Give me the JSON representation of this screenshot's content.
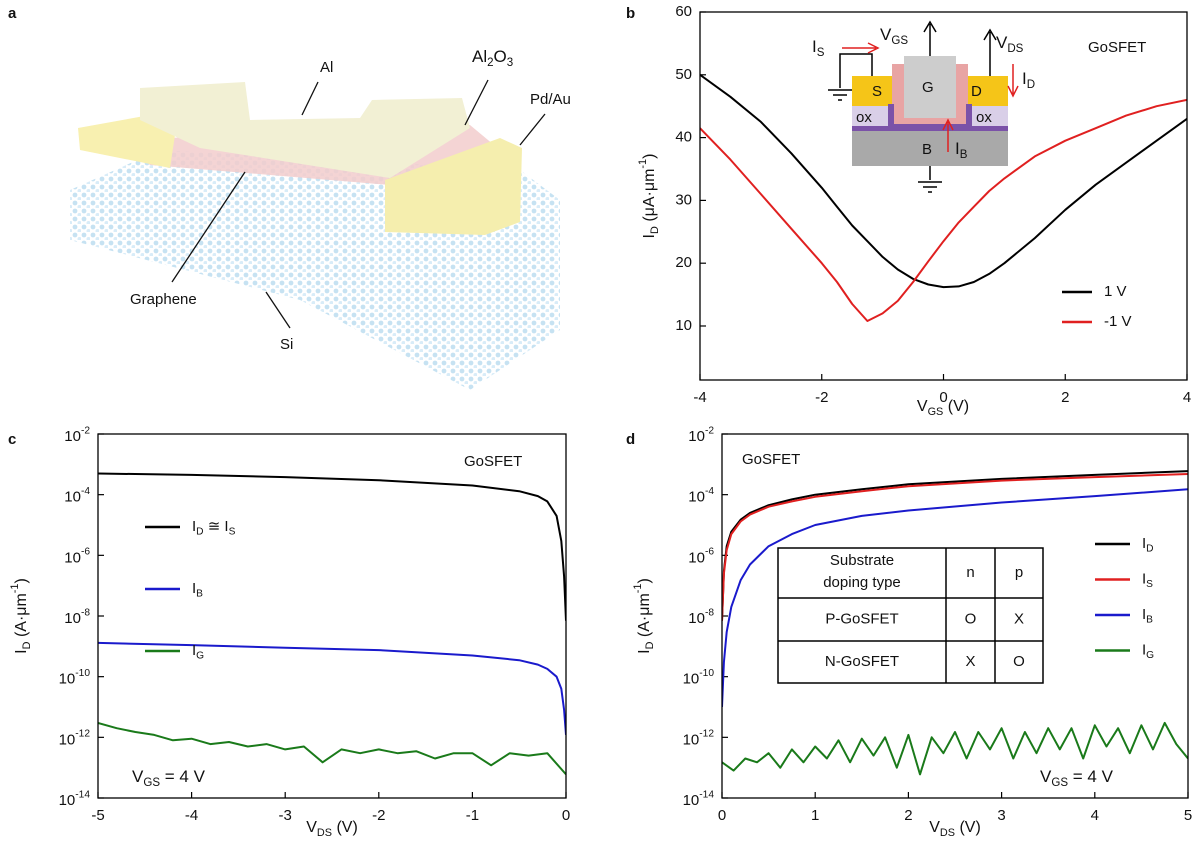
{
  "diagram": {
    "panel": "a",
    "labels": [
      "Al",
      [
        "Al",
        {
          "sub": "2"
        },
        "O",
        {
          "sub": "3"
        }
      ],
      "Pd/Au",
      "Graphene",
      "Si"
    ]
  },
  "chart_data": [
    {
      "type": "line",
      "panel": "b",
      "xlabel": [
        "V",
        {
          "sub": "GS"
        },
        " (V)"
      ],
      "ylabel": [
        "I",
        {
          "sub": "D"
        },
        " (μA·μm",
        {
          "sup": "-1"
        },
        ")"
      ],
      "xlim": [
        -4,
        4
      ],
      "ylim": [
        1.4,
        60
      ],
      "xticks": [
        -4,
        -2,
        0,
        2,
        4
      ],
      "yticks": [
        10,
        20,
        30,
        40,
        50,
        60
      ],
      "log_y": false,
      "x": [
        -4,
        -3.5,
        -3,
        -2.5,
        -2,
        -1.75,
        -1.5,
        -1.25,
        -1,
        -0.75,
        -0.5,
        -0.25,
        0,
        0.25,
        0.5,
        0.75,
        1,
        1.5,
        2,
        2.5,
        3,
        3.5,
        4
      ],
      "series": [
        {
          "name": "1 V",
          "color": "#000000",
          "values": [
            50,
            46.5,
            42.5,
            37.5,
            32,
            29,
            26,
            23.5,
            21,
            19,
            17.5,
            16.6,
            16.2,
            16.3,
            17,
            18.3,
            20,
            24,
            28.5,
            32.5,
            36,
            39.5,
            43
          ]
        },
        {
          "name": "-1 V",
          "color": "#e02020",
          "values": [
            41.5,
            36.5,
            31,
            25.5,
            20,
            17,
            13.5,
            10.8,
            12,
            14,
            17,
            20.3,
            23.5,
            26.5,
            29,
            31.5,
            33.5,
            37,
            39.5,
            41.5,
            43.5,
            45,
            46
          ]
        }
      ],
      "annotations": [
        "GoSFET"
      ],
      "inset": [
        [
          "I",
          {
            "sub": "S"
          }
        ],
        [
          "V",
          {
            "sub": "GS"
          }
        ],
        [
          "V",
          {
            "sub": "DS"
          }
        ],
        "G",
        "S",
        "D",
        [
          "I",
          {
            "sub": "D"
          }
        ],
        "ox",
        "ox",
        "B",
        [
          "I",
          {
            "sub": "B"
          }
        ]
      ]
    },
    {
      "type": "line",
      "panel": "c",
      "xlabel": [
        "V",
        {
          "sub": "DS"
        },
        " (V)"
      ],
      "ylabel": [
        "I",
        {
          "sub": "D"
        },
        " (A·μm",
        {
          "sup": "-1"
        },
        ")"
      ],
      "xlim": [
        -5,
        0
      ],
      "ylim": [
        1e-14,
        0.01
      ],
      "log_y": true,
      "xticks": [
        -5,
        -4,
        -3,
        -2,
        -1,
        0
      ],
      "yticks": [
        {
          "value": 1e-14,
          "label": [
            "10",
            {
              "sup": "-14"
            }
          ]
        },
        {
          "value": 1e-12,
          "label": [
            "10",
            {
              "sup": "-12"
            }
          ]
        },
        {
          "value": 1e-10,
          "label": [
            "10",
            {
              "sup": "-10"
            }
          ]
        },
        {
          "value": 1e-08,
          "label": [
            "10",
            {
              "sup": "-8"
            }
          ]
        },
        {
          "value": 1e-06,
          "label": [
            "10",
            {
              "sup": "-6"
            }
          ]
        },
        {
          "value": 0.0001,
          "label": [
            "10",
            {
              "sup": "-4"
            }
          ]
        },
        {
          "value": 0.01,
          "label": [
            "10",
            {
              "sup": "-2"
            }
          ]
        }
      ],
      "series": [
        {
          "name": [
            "I",
            {
              "sub": "D"
            },
            " ≅ I",
            {
              "sub": "S"
            }
          ],
          "color": "#000000",
          "x": [
            -5,
            -4,
            -3,
            -2,
            -1,
            -0.5,
            -0.3,
            -0.2,
            -0.1,
            -0.05,
            -0.02,
            0
          ],
          "values": [
            0.0005,
            0.00045,
            0.00038,
            0.0003,
            0.0002,
            0.00013,
            9e-05,
            6e-05,
            2e-05,
            3e-06,
            2e-07,
            7e-09
          ]
        },
        {
          "name": [
            "I",
            {
              "sub": "B"
            }
          ],
          "color": "#1a1acc",
          "x": [
            -5,
            -4,
            -3,
            -2,
            -1,
            -0.5,
            -0.3,
            -0.2,
            -0.1,
            -0.05,
            -0.02,
            0
          ],
          "values": [
            1.3e-09,
            1.1e-09,
            9e-10,
            7.5e-10,
            5e-10,
            3.5e-10,
            2.5e-10,
            1.8e-10,
            1e-10,
            4e-11,
            8e-12,
            1.2e-12
          ]
        },
        {
          "name": [
            "I",
            {
              "sub": "G"
            }
          ],
          "color": "#1a7a1a",
          "x": [
            -5,
            -4.8,
            -4.6,
            -4.4,
            -4.2,
            -4,
            -3.8,
            -3.6,
            -3.4,
            -3.2,
            -3,
            -2.8,
            -2.6,
            -2.4,
            -2.2,
            -2,
            -1.8,
            -1.6,
            -1.4,
            -1.2,
            -1,
            -0.8,
            -0.6,
            -0.4,
            -0.2,
            0
          ],
          "values": [
            3e-12,
            2e-12,
            1.5e-12,
            1.2e-12,
            8e-13,
            9e-13,
            6e-13,
            7e-13,
            5e-13,
            6e-13,
            4e-13,
            5e-13,
            1.5e-13,
            4e-13,
            3e-13,
            4e-13,
            3e-13,
            3.5e-13,
            2e-13,
            3e-13,
            3e-13,
            1.2e-13,
            3e-13,
            2.5e-13,
            3e-13,
            6e-14
          ]
        }
      ],
      "annotations": [
        "GoSFET",
        [
          "V",
          {
            "sub": "GS"
          },
          " = 4 V"
        ]
      ]
    },
    {
      "type": "line",
      "panel": "d",
      "xlabel": [
        "V",
        {
          "sub": "DS"
        },
        " (V)"
      ],
      "ylabel": [
        "I",
        {
          "sub": "D"
        },
        " (A·μm",
        {
          "sup": "-1"
        },
        ")"
      ],
      "xlim": [
        0,
        5
      ],
      "ylim": [
        1e-14,
        0.01
      ],
      "log_y": true,
      "xticks": [
        0,
        1,
        2,
        3,
        4,
        5
      ],
      "yticks": [
        {
          "value": 1e-14,
          "label": [
            "10",
            {
              "sup": "-14"
            }
          ]
        },
        {
          "value": 1e-12,
          "label": [
            "10",
            {
              "sup": "-12"
            }
          ]
        },
        {
          "value": 1e-10,
          "label": [
            "10",
            {
              "sup": "-10"
            }
          ]
        },
        {
          "value": 1e-08,
          "label": [
            "10",
            {
              "sup": "-8"
            }
          ]
        },
        {
          "value": 1e-06,
          "label": [
            "10",
            {
              "sup": "-6"
            }
          ]
        },
        {
          "value": 0.0001,
          "label": [
            "10",
            {
              "sup": "-4"
            }
          ]
        },
        {
          "value": 0.01,
          "label": [
            "10",
            {
              "sup": "-2"
            }
          ]
        }
      ],
      "series": [
        {
          "name": [
            "I",
            {
              "sub": "D"
            }
          ],
          "color": "#000000",
          "x": [
            0,
            0.02,
            0.05,
            0.1,
            0.2,
            0.3,
            0.5,
            0.75,
            1,
            1.5,
            2,
            3,
            4,
            5
          ],
          "values": [
            7e-09,
            3e-07,
            2e-06,
            6e-06,
            1.5e-05,
            2.5e-05,
            4.5e-05,
            7e-05,
            0.0001,
            0.00015,
            0.00022,
            0.00033,
            0.00045,
            0.0006
          ]
        },
        {
          "name": [
            "I",
            {
              "sub": "S"
            }
          ],
          "color": "#e02020",
          "x": [
            0,
            0.02,
            0.05,
            0.1,
            0.2,
            0.3,
            0.5,
            0.75,
            1,
            1.5,
            2,
            3,
            4,
            5
          ],
          "values": [
            7e-09,
            2.5e-07,
            1.5e-06,
            5e-06,
            1.3e-05,
            2.2e-05,
            4e-05,
            6e-05,
            8.5e-05,
            0.00013,
            0.00019,
            0.00029,
            0.00038,
            0.00048
          ]
        },
        {
          "name": [
            "I",
            {
              "sub": "B"
            }
          ],
          "color": "#1a1acc",
          "x": [
            0,
            0.02,
            0.05,
            0.1,
            0.2,
            0.3,
            0.5,
            0.75,
            1,
            1.5,
            2,
            3,
            4,
            5
          ],
          "values": [
            1e-11,
            3e-10,
            3e-09,
            2e-08,
            1.5e-07,
            5e-07,
            2e-06,
            5e-06,
            1e-05,
            2e-05,
            3e-05,
            5.5e-05,
            9e-05,
            0.00015
          ]
        },
        {
          "name": [
            "I",
            {
              "sub": "G"
            }
          ],
          "color": "#1a7a1a",
          "x": [
            0,
            0.125,
            0.25,
            0.375,
            0.5,
            0.625,
            0.75,
            0.875,
            1,
            1.125,
            1.25,
            1.375,
            1.5,
            1.625,
            1.75,
            1.875,
            2,
            2.125,
            2.25,
            2.375,
            2.5,
            2.625,
            2.75,
            2.875,
            3,
            3.125,
            3.25,
            3.375,
            3.5,
            3.625,
            3.75,
            3.875,
            4,
            4.125,
            4.25,
            4.375,
            4.5,
            4.625,
            4.75,
            4.875,
            5
          ],
          "values": [
            1.5e-13,
            8e-14,
            2e-13,
            1.5e-13,
            3e-13,
            1e-13,
            4e-13,
            1.5e-13,
            5e-13,
            2e-13,
            8e-13,
            1.5e-13,
            9e-13,
            2.5e-13,
            1e-12,
            1e-13,
            1.2e-12,
            6e-14,
            1e-12,
            3e-13,
            1.5e-12,
            2e-13,
            1.5e-12,
            4e-13,
            2e-12,
            2e-13,
            1.5e-12,
            3e-13,
            2e-12,
            4e-13,
            2e-12,
            2e-13,
            2.5e-12,
            5e-13,
            2e-12,
            3e-13,
            2.5e-12,
            4e-13,
            3e-12,
            6e-13,
            2e-13
          ]
        }
      ],
      "annotations": [
        "GoSFET",
        [
          "V",
          {
            "sub": "GS"
          },
          " = 4 V"
        ]
      ],
      "table": {
        "header": [
          [
            "Substrate",
            "doping type"
          ],
          "n",
          "p"
        ],
        "rows": [
          [
            "P-GoSFET",
            "O",
            "X"
          ],
          [
            "N-GoSFET",
            "X",
            "O"
          ]
        ]
      }
    }
  ]
}
